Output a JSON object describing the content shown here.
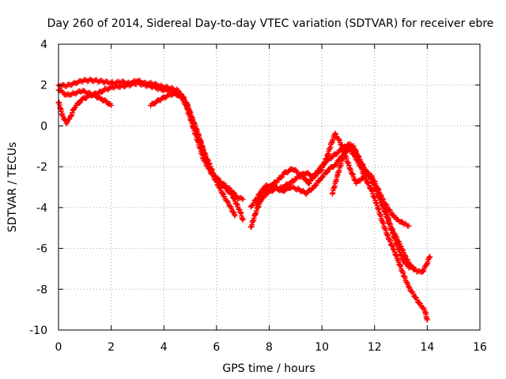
{
  "chart_data": {
    "type": "scatter",
    "title": "Day 260 of 2014, Sidereal Day-to-day VTEC variation (SDTVAR) for receiver ebre",
    "xlabel": "GPS time / hours",
    "ylabel": "SDTVAR / TECUs",
    "xlim": [
      0,
      16
    ],
    "ylim": [
      -10,
      4
    ],
    "x_ticks": [
      0,
      2,
      4,
      6,
      8,
      10,
      12,
      14,
      16
    ],
    "y_ticks": [
      -10,
      -8,
      -6,
      -4,
      -2,
      0,
      2,
      4
    ],
    "x_tick_labels": [
      "0",
      "2",
      "4",
      "6",
      "8",
      "10",
      "12",
      "14",
      "16"
    ],
    "y_tick_labels": [
      "-10",
      "-8",
      "-6",
      "-4",
      "-2",
      "0",
      "2",
      "4"
    ],
    "grid": true,
    "marker": "+",
    "series": [
      {
        "name": "ebre",
        "color": "#ff0000",
        "tracks": [
          [
            [
              0.0,
              2.0
            ],
            [
              0.3,
              1.95
            ],
            [
              0.6,
              2.1
            ],
            [
              0.9,
              2.2
            ],
            [
              1.2,
              2.25
            ],
            [
              1.5,
              2.2
            ],
            [
              1.8,
              2.15
            ],
            [
              2.1,
              2.1
            ],
            [
              2.4,
              2.15
            ],
            [
              2.7,
              2.1
            ],
            [
              3.0,
              2.2
            ],
            [
              3.3,
              2.1
            ],
            [
              3.6,
              2.05
            ],
            [
              3.9,
              1.95
            ],
            [
              4.2,
              1.85
            ],
            [
              4.5,
              1.75
            ],
            [
              4.7,
              1.5
            ],
            [
              4.9,
              1.0
            ],
            [
              5.1,
              0.3
            ],
            [
              5.3,
              -0.4
            ],
            [
              5.5,
              -1.2
            ],
            [
              5.7,
              -1.8
            ],
            [
              5.9,
              -2.4
            ],
            [
              6.2,
              -2.8
            ],
            [
              6.5,
              -3.1
            ],
            [
              6.8,
              -3.5
            ],
            [
              7.0,
              -3.6
            ]
          ],
          [
            [
              0.0,
              1.8
            ],
            [
              0.3,
              1.5
            ],
            [
              0.6,
              1.6
            ],
            [
              0.9,
              1.7
            ],
            [
              1.2,
              1.6
            ],
            [
              1.5,
              1.4
            ],
            [
              1.8,
              1.2
            ],
            [
              2.0,
              1.0
            ]
          ],
          [
            [
              0.0,
              1.2
            ],
            [
              0.15,
              0.5
            ],
            [
              0.3,
              0.15
            ],
            [
              0.45,
              0.4
            ],
            [
              0.6,
              0.9
            ],
            [
              0.9,
              1.3
            ],
            [
              1.2,
              1.5
            ],
            [
              1.5,
              1.6
            ],
            [
              1.8,
              1.8
            ],
            [
              2.1,
              1.9
            ],
            [
              2.4,
              1.95
            ],
            [
              2.7,
              2.0
            ],
            [
              3.0,
              2.1
            ],
            [
              3.3,
              2.0
            ],
            [
              3.6,
              1.9
            ],
            [
              3.9,
              1.8
            ],
            [
              4.2,
              1.7
            ],
            [
              4.5,
              1.6
            ],
            [
              4.8,
              1.2
            ],
            [
              5.0,
              0.6
            ],
            [
              5.2,
              -0.1
            ],
            [
              5.4,
              -0.8
            ],
            [
              5.6,
              -1.6
            ],
            [
              5.8,
              -2.3
            ],
            [
              6.0,
              -2.6
            ],
            [
              6.3,
              -3.0
            ],
            [
              6.6,
              -3.4
            ],
            [
              6.9,
              -4.2
            ],
            [
              7.0,
              -4.6
            ]
          ],
          [
            [
              3.5,
              1.0
            ],
            [
              3.8,
              1.25
            ],
            [
              4.1,
              1.45
            ],
            [
              4.4,
              1.6
            ],
            [
              4.7,
              1.4
            ],
            [
              4.9,
              0.8
            ],
            [
              5.1,
              0.0
            ],
            [
              5.3,
              -0.8
            ],
            [
              5.5,
              -1.6
            ],
            [
              5.7,
              -2.1
            ],
            [
              5.9,
              -2.5
            ],
            [
              6.1,
              -3.0
            ],
            [
              6.3,
              -3.5
            ],
            [
              6.5,
              -3.9
            ],
            [
              6.7,
              -4.4
            ]
          ],
          [
            [
              7.3,
              -4.0
            ],
            [
              7.5,
              -3.6
            ],
            [
              7.7,
              -3.2
            ],
            [
              7.9,
              -2.9
            ],
            [
              8.2,
              -3.0
            ],
            [
              8.5,
              -3.2
            ],
            [
              8.8,
              -3.0
            ],
            [
              9.1,
              -3.1
            ],
            [
              9.4,
              -3.3
            ],
            [
              9.7,
              -3.0
            ],
            [
              10.0,
              -2.5
            ],
            [
              10.3,
              -2.1
            ],
            [
              10.5,
              -1.9
            ],
            [
              10.7,
              -1.6
            ],
            [
              10.9,
              -1.3
            ],
            [
              11.1,
              -1.0
            ],
            [
              11.3,
              -1.3
            ],
            [
              11.5,
              -1.8
            ],
            [
              11.7,
              -2.3
            ],
            [
              11.9,
              -2.7
            ],
            [
              12.1,
              -3.2
            ],
            [
              12.3,
              -3.8
            ],
            [
              12.5,
              -4.5
            ],
            [
              12.7,
              -5.3
            ],
            [
              12.9,
              -6.0
            ],
            [
              13.1,
              -6.6
            ],
            [
              13.3,
              -6.9
            ],
            [
              13.5,
              -7.0
            ]
          ],
          [
            [
              7.3,
              -5.0
            ],
            [
              7.5,
              -4.2
            ],
            [
              7.7,
              -3.6
            ],
            [
              7.9,
              -3.3
            ],
            [
              8.2,
              -3.1
            ],
            [
              8.5,
              -3.0
            ],
            [
              8.8,
              -2.8
            ],
            [
              9.1,
              -2.5
            ],
            [
              9.4,
              -2.3
            ],
            [
              9.7,
              -2.5
            ],
            [
              10.0,
              -2.1
            ],
            [
              10.2,
              -1.5
            ],
            [
              10.4,
              -0.7
            ],
            [
              10.5,
              -0.4
            ],
            [
              10.7,
              -0.8
            ],
            [
              10.9,
              -1.5
            ],
            [
              11.1,
              -2.2
            ],
            [
              11.3,
              -2.8
            ],
            [
              11.5,
              -2.6
            ],
            [
              11.7,
              -2.3
            ],
            [
              11.9,
              -2.5
            ],
            [
              12.1,
              -3.0
            ],
            [
              12.3,
              -3.6
            ],
            [
              12.5,
              -4.0
            ],
            [
              12.7,
              -4.4
            ],
            [
              12.9,
              -4.6
            ],
            [
              13.1,
              -4.8
            ],
            [
              13.3,
              -4.9
            ]
          ],
          [
            [
              7.5,
              -3.8
            ],
            [
              7.7,
              -3.3
            ],
            [
              8.0,
              -3.0
            ],
            [
              8.3,
              -2.7
            ],
            [
              8.6,
              -2.3
            ],
            [
              8.9,
              -2.1
            ],
            [
              9.2,
              -2.4
            ],
            [
              9.5,
              -2.8
            ],
            [
              9.8,
              -2.3
            ],
            [
              10.1,
              -1.8
            ],
            [
              10.4,
              -1.5
            ],
            [
              10.7,
              -1.2
            ],
            [
              10.9,
              -1.0
            ],
            [
              11.1,
              -1.2
            ],
            [
              11.3,
              -1.6
            ],
            [
              11.5,
              -2.1
            ],
            [
              11.7,
              -2.7
            ],
            [
              11.9,
              -3.2
            ],
            [
              12.1,
              -3.9
            ],
            [
              12.3,
              -4.7
            ],
            [
              12.5,
              -5.4
            ],
            [
              12.7,
              -6.0
            ],
            [
              12.9,
              -6.6
            ],
            [
              13.1,
              -7.3
            ],
            [
              13.3,
              -7.9
            ],
            [
              13.5,
              -8.3
            ],
            [
              13.7,
              -8.7
            ],
            [
              13.9,
              -9.0
            ],
            [
              14.0,
              -9.5
            ]
          ],
          [
            [
              10.4,
              -3.3
            ],
            [
              10.6,
              -2.4
            ],
            [
              10.8,
              -1.5
            ],
            [
              11.0,
              -0.9
            ],
            [
              11.2,
              -1.0
            ],
            [
              11.4,
              -1.6
            ],
            [
              11.6,
              -2.1
            ],
            [
              11.8,
              -2.4
            ],
            [
              12.0,
              -2.9
            ],
            [
              12.2,
              -3.5
            ],
            [
              12.4,
              -4.2
            ],
            [
              12.6,
              -4.9
            ],
            [
              12.8,
              -5.4
            ],
            [
              13.0,
              -5.9
            ],
            [
              13.2,
              -6.5
            ],
            [
              13.4,
              -6.9
            ],
            [
              13.6,
              -7.1
            ],
            [
              13.8,
              -7.2
            ],
            [
              14.0,
              -6.7
            ],
            [
              14.1,
              -6.4
            ]
          ]
        ]
      }
    ]
  }
}
